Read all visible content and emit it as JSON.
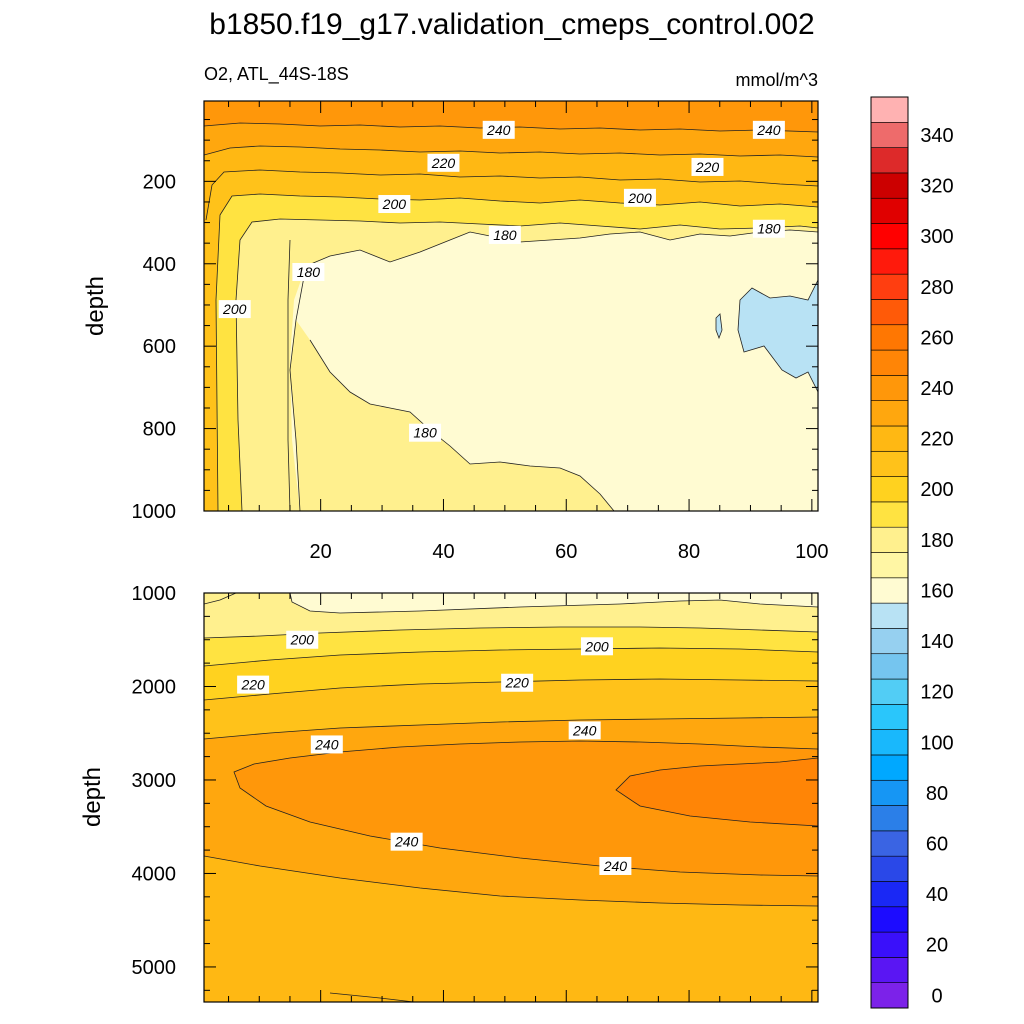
{
  "chart_data": {
    "type": "contour",
    "title": "b1850.f19_g17.validation_cmeps_control.002",
    "variable_label": "O2, ATL_44S-18S",
    "units_label": "mmol/m^3",
    "colorbar": {
      "levels": [
        0,
        10,
        20,
        30,
        40,
        50,
        60,
        70,
        80,
        90,
        100,
        110,
        120,
        130,
        140,
        150,
        160,
        170,
        180,
        190,
        200,
        210,
        220,
        230,
        240,
        250,
        260,
        270,
        280,
        290,
        300,
        310,
        320,
        330,
        340,
        350
      ],
      "tick_labels": [
        "0",
        "20",
        "40",
        "60",
        "80",
        "100",
        "120",
        "140",
        "160",
        "180",
        "200",
        "220",
        "240",
        "260",
        "280",
        "300",
        "320",
        "340"
      ],
      "colors": [
        "#7c22e9",
        "#5a16f3",
        "#3a10fa",
        "#1c0cff",
        "#1a28f5",
        "#2a48e8",
        "#3a64e3",
        "#2b7fe8",
        "#1696f4",
        "#00a8ff",
        "#19b8fc",
        "#2ac6fb",
        "#52cdf5",
        "#75c5ef",
        "#96d0f0",
        "#b8e2f4",
        "#fffbd2",
        "#fff6a4",
        "#fff08e",
        "#ffe341",
        "#ffd21f",
        "#ffc21a",
        "#ffb813",
        "#ffa70e",
        "#ff970a",
        "#ff8506",
        "#ff7702",
        "#ff5a08",
        "#ff3e10",
        "#ff1a0c",
        "#ff0000",
        "#e00000",
        "#cc0000",
        "#dd2a2a",
        "#ee6b6b",
        "#ffb2b2"
      ]
    },
    "panels": [
      {
        "name": "upper",
        "ylabel": "depth",
        "xlim": [
          1,
          101
        ],
        "ylim": [
          1000,
          5
        ],
        "x_ticks": [
          20,
          40,
          60,
          80,
          100
        ],
        "y_ticks": [
          200,
          400,
          600,
          800,
          1000
        ],
        "contour_labels": [
          {
            "text": "240",
            "x": 49,
            "y": 75
          },
          {
            "text": "240",
            "x": 93,
            "y": 75
          },
          {
            "text": "220",
            "x": 40,
            "y": 155
          },
          {
            "text": "220",
            "x": 83,
            "y": 165
          },
          {
            "text": "200",
            "x": 32,
            "y": 255
          },
          {
            "text": "200",
            "x": 72,
            "y": 240
          },
          {
            "text": "200",
            "x": 6,
            "y": 510
          },
          {
            "text": "180",
            "x": 18,
            "y": 420
          },
          {
            "text": "180",
            "x": 50,
            "y": 330
          },
          {
            "text": "180",
            "x": 93,
            "y": 315
          },
          {
            "text": "180",
            "x": 37,
            "y": 810
          }
        ]
      },
      {
        "name": "lower",
        "ylabel": "depth",
        "xlim": [
          1,
          101
        ],
        "ylim": [
          5375,
          1000
        ],
        "x_ticks": [
          20,
          40,
          60,
          80,
          100
        ],
        "y_ticks": [
          1000,
          2000,
          3000,
          4000,
          5000
        ],
        "contour_labels": [
          {
            "text": "200",
            "x": 17,
            "y": 1500
          },
          {
            "text": "200",
            "x": 65,
            "y": 1570
          },
          {
            "text": "220",
            "x": 9,
            "y": 1980
          },
          {
            "text": "220",
            "x": 52,
            "y": 1960
          },
          {
            "text": "240",
            "x": 21,
            "y": 2620
          },
          {
            "text": "240",
            "x": 63,
            "y": 2470
          },
          {
            "text": "240",
            "x": 34,
            "y": 3660
          },
          {
            "text": "240",
            "x": 68,
            "y": 3920
          }
        ]
      }
    ]
  }
}
